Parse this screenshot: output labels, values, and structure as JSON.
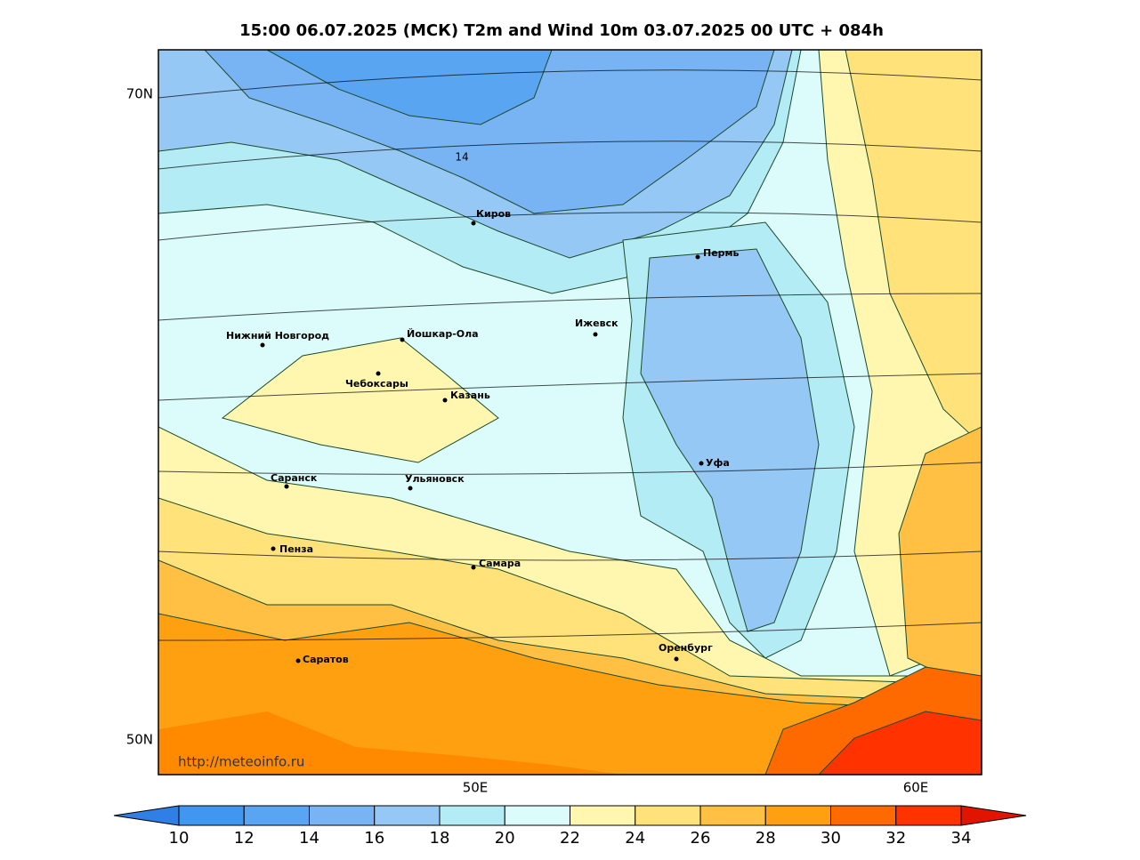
{
  "title": "15:00 06.07.2025 (МСК) T2m and Wind 10m 03.07.2025 00 UTC + 084h",
  "axes": {
    "y_labels": [
      "70N",
      "50N"
    ],
    "x_labels": [
      "50E",
      "60E"
    ]
  },
  "contour_label": "14",
  "url": "http://meteoinfo.ru",
  "cities": [
    "Киров",
    "Пермь",
    "Нижний Новгород",
    "Йошкар-Ола",
    "Ижевск",
    "Чебоксары",
    "Казань",
    "Саранск",
    "Ульяновск",
    "Уфа",
    "Пенза",
    "Самара",
    "Оренбург",
    "Саратов"
  ],
  "colorbar": {
    "ticks": [
      10,
      12,
      14,
      16,
      18,
      20,
      22,
      24,
      26,
      28,
      30,
      32,
      34
    ],
    "colors": [
      "#2f7fe6",
      "#4196ef",
      "#5aa5f2",
      "#78b4f4",
      "#96c8f5",
      "#b4ecf5",
      "#dcfcfc",
      "#fff7b0",
      "#ffe27a",
      "#ffc044",
      "#ffa010",
      "#ff6a00",
      "#ff3200",
      "#e11400"
    ]
  }
}
